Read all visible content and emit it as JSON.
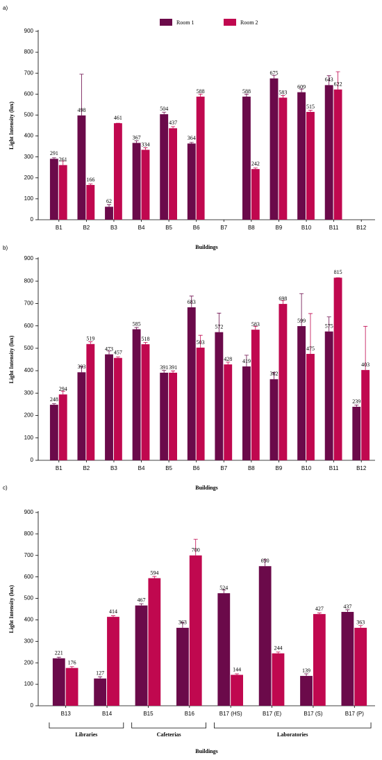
{
  "chart_data": [
    {
      "type": "bar",
      "panel_label": "a)",
      "y_label": "Light Intensity (lux)",
      "x_label": "Buildings",
      "categories": [
        "B1",
        "B2",
        "B3",
        "B4",
        "B5",
        "B6",
        "B7",
        "B8",
        "B9",
        "B10",
        "B11",
        "B12"
      ],
      "series": [
        {
          "name": "Room 1",
          "color": "#6b0a4a",
          "values": [
            291,
            498,
            62,
            367,
            504,
            364,
            null,
            588,
            675,
            609,
            643,
            null
          ],
          "errors": [
            5,
            197,
            10,
            10,
            10,
            5,
            null,
            12,
            15,
            15,
            45,
            null
          ]
        },
        {
          "name": "Room 2",
          "color": "#c0084f",
          "values": [
            261,
            166,
            461,
            334,
            437,
            588,
            null,
            242,
            583,
            515,
            622,
            null
          ],
          "errors": [
            20,
            5,
            0,
            10,
            8,
            12,
            null,
            5,
            10,
            8,
            85,
            null
          ]
        }
      ],
      "ylim": [
        0,
        900
      ],
      "yticks": [
        0,
        100,
        200,
        300,
        400,
        500,
        600,
        700,
        800,
        900
      ],
      "legend": "top"
    },
    {
      "type": "bar",
      "panel_label": "b)",
      "y_label": "Light Intensity (lux)",
      "x_label": "Buildings",
      "categories": [
        "B1",
        "B2",
        "B3",
        "B4",
        "B5",
        "B6",
        "B7",
        "B8",
        "B9",
        "B10",
        "B11",
        "B12"
      ],
      "series": [
        {
          "name": "Room 1",
          "color": "#6b0a4a",
          "values": [
            248,
            393,
            473,
            585,
            391,
            683,
            572,
            419,
            362,
            599,
            575,
            239
          ],
          "errors": [
            5,
            25,
            15,
            8,
            10,
            50,
            85,
            50,
            30,
            145,
            65,
            8
          ]
        },
        {
          "name": "Room 2",
          "color": "#c0084f",
          "values": [
            294,
            519,
            457,
            518,
            391,
            503,
            428,
            583,
            698,
            475,
            815,
            403
          ],
          "errors": [
            15,
            10,
            5,
            8,
            8,
            55,
            10,
            15,
            15,
            180,
            0,
            195
          ]
        }
      ],
      "ylim": [
        0,
        900
      ],
      "yticks": [
        0,
        100,
        200,
        300,
        400,
        500,
        600,
        700,
        800,
        900
      ]
    },
    {
      "type": "bar",
      "panel_label": "c)",
      "y_label": "Light Intensity (lux)",
      "x_label": "Buildings",
      "categories": [
        "B13",
        "B14",
        "B15",
        "B16",
        "B17 (HS)",
        "B17 (E)",
        "B17 (S)",
        "B17 (P)"
      ],
      "series": [
        {
          "name": "Room 1",
          "color": "#6b0a4a",
          "values": [
            221,
            127,
            467,
            363,
            524,
            650,
            139,
            437
          ],
          "errors": [
            5,
            8,
            8,
            25,
            15,
            30,
            10,
            10
          ]
        },
        {
          "name": "Room 2",
          "color": "#c0084f",
          "values": [
            176,
            414,
            594,
            700,
            144,
            244,
            427,
            363
          ],
          "errors": [
            6,
            5,
            8,
            75,
            5,
            6,
            5,
            10
          ]
        }
      ],
      "groups": [
        {
          "label": "Libraries",
          "members": [
            "B13",
            "B14"
          ]
        },
        {
          "label": "Cafeterias",
          "members": [
            "B15",
            "B16"
          ]
        },
        {
          "label": "Laboratories",
          "members": [
            "B17 (HS)",
            "B17 (E)",
            "B17 (S)",
            "B17 (P)"
          ]
        }
      ],
      "ylim": [
        0,
        900
      ],
      "yticks": [
        0,
        100,
        200,
        300,
        400,
        500,
        600,
        700,
        800,
        900
      ]
    }
  ]
}
